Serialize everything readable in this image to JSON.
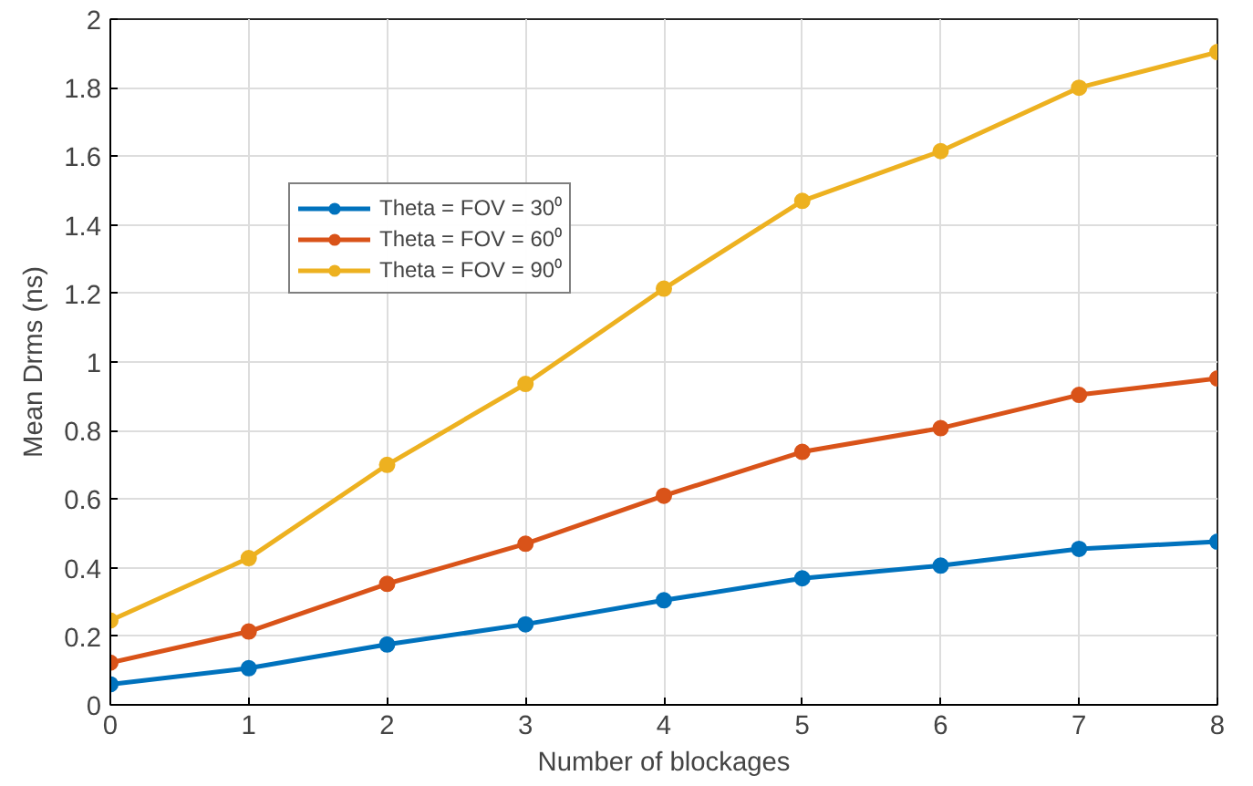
{
  "chart_data": {
    "type": "line",
    "xlabel": "Number of blockages",
    "ylabel": "Mean Drms (ns)",
    "x": [
      0,
      1,
      2,
      3,
      4,
      5,
      6,
      7,
      8
    ],
    "series": [
      {
        "name": "Theta = FOV = 30⁰",
        "color": "#0072bd",
        "values": [
          0.06,
          0.107,
          0.176,
          0.235,
          0.305,
          0.369,
          0.406,
          0.455,
          0.476
        ]
      },
      {
        "name": "Theta = FOV = 60⁰",
        "color": "#d95319",
        "values": [
          0.123,
          0.214,
          0.353,
          0.47,
          0.61,
          0.738,
          0.807,
          0.904,
          0.952
        ]
      },
      {
        "name": "Theta = FOV = 90⁰",
        "color": "#edb120",
        "values": [
          0.246,
          0.428,
          0.7,
          0.936,
          1.214,
          1.47,
          1.615,
          1.8,
          1.904
        ]
      }
    ],
    "xlim": [
      0,
      8
    ],
    "xticks": [
      0,
      1,
      2,
      3,
      4,
      5,
      6,
      7,
      8
    ],
    "ylim": [
      0,
      2
    ],
    "yticks": [
      0,
      0.2,
      0.4,
      0.6,
      0.8,
      1,
      1.2,
      1.4,
      1.6,
      1.8,
      2
    ],
    "grid": true,
    "legend": "top left",
    "marker": "circle",
    "line_style": "solid"
  }
}
